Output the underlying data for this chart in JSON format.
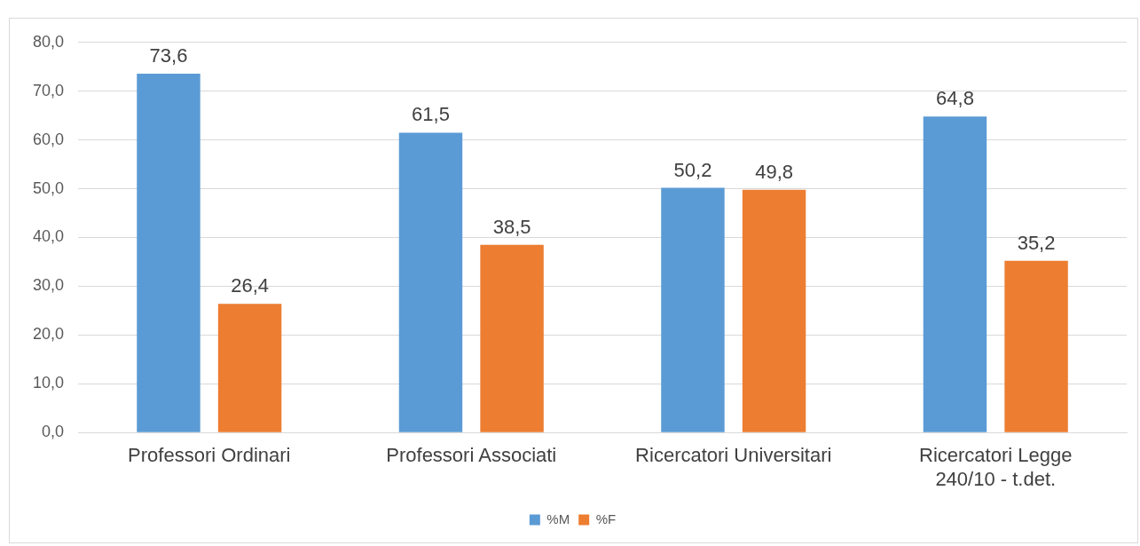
{
  "chart_data": {
    "type": "bar",
    "categories": [
      "Professori Ordinari",
      "Professori Associati",
      "Ricercatori Universitari",
      "Ricercatori Legge 240/10 - t.det."
    ],
    "series": [
      {
        "name": "%M",
        "color": "#5b9bd5",
        "values": [
          73.6,
          61.5,
          50.2,
          64.8
        ]
      },
      {
        "name": "%F",
        "color": "#ed7d31",
        "values": [
          26.4,
          38.5,
          49.8,
          35.2
        ]
      }
    ],
    "ylim": [
      0,
      80
    ],
    "yticks": [
      {
        "value": 0,
        "label": "0,0"
      },
      {
        "value": 10,
        "label": "10,0"
      },
      {
        "value": 20,
        "label": "20,0"
      },
      {
        "value": 30,
        "label": "30,0"
      },
      {
        "value": 40,
        "label": "40,0"
      },
      {
        "value": 50,
        "label": "50,0"
      },
      {
        "value": 60,
        "label": "60,0"
      },
      {
        "value": 70,
        "label": "70,0"
      },
      {
        "value": 80,
        "label": "80,0"
      }
    ],
    "value_labels": [
      [
        "73,6",
        "61,5",
        "50,2",
        "64,8"
      ],
      [
        "26,4",
        "38,5",
        "49,8",
        "35,2"
      ]
    ],
    "grid": "y",
    "legend": "bottom"
  }
}
